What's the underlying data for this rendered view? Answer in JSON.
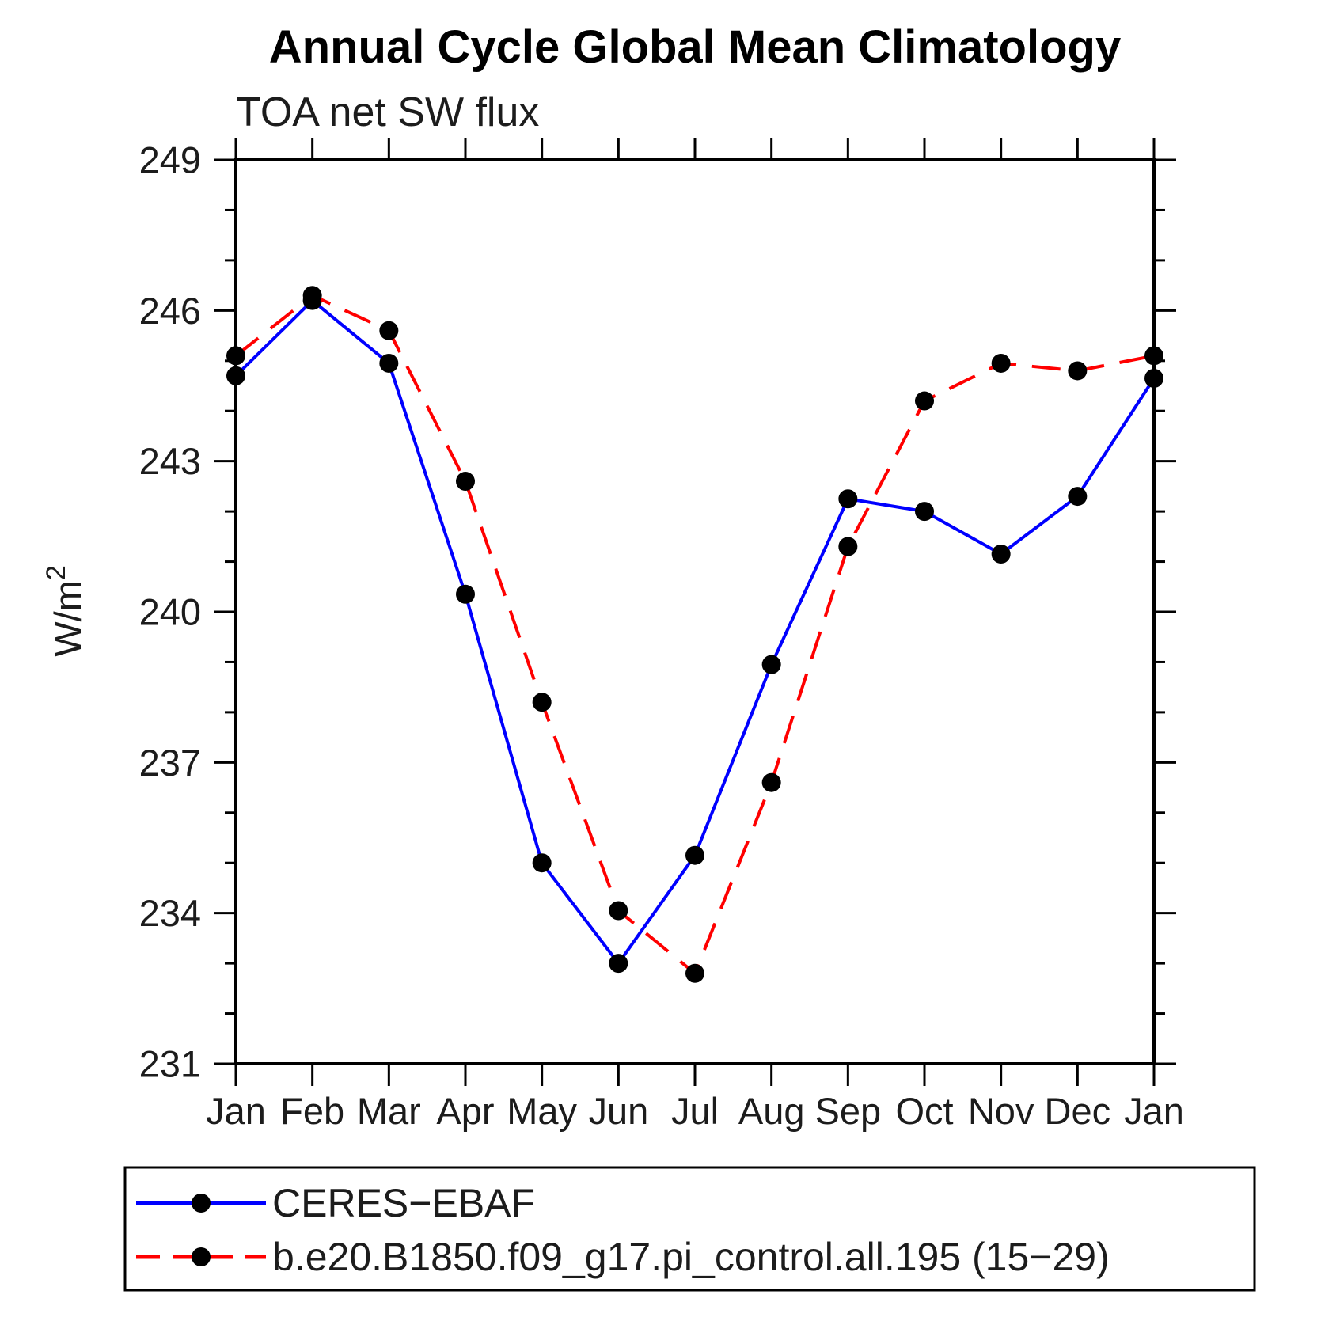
{
  "title": "Annual Cycle Global Mean Climatology",
  "subtitle": "TOA net SW flux",
  "ylabel": {
    "base": "W/m",
    "exponent": "2"
  },
  "chart_data": {
    "type": "line",
    "title": "Annual Cycle Global Mean Climatology",
    "subtitle": "TOA net SW flux",
    "xlabel": "",
    "ylabel": "W/m²",
    "x_categories": [
      "Jan",
      "Feb",
      "Mar",
      "Apr",
      "May",
      "Jun",
      "Jul",
      "Aug",
      "Sep",
      "Oct",
      "Nov",
      "Dec",
      "Jan"
    ],
    "ylim": [
      231,
      249
    ],
    "y_major_ticks": [
      249,
      246,
      243,
      240,
      237,
      234,
      231
    ],
    "y_minor_step": 1,
    "grid": false,
    "legend_position": "bottom",
    "series": [
      {
        "name": "CERES−EBAF",
        "color": "#0000ff",
        "line_style": "solid",
        "marker": "filled-circle",
        "marker_color": "#000000",
        "values": [
          244.7,
          246.2,
          244.95,
          240.35,
          235.0,
          233.0,
          235.15,
          238.95,
          242.25,
          242.0,
          241.15,
          242.3,
          244.65
        ]
      },
      {
        "name": "b.e20.B1850.f09_g17.pi_control.all.195 (15−29)",
        "color": "#ff0000",
        "line_style": "dashed",
        "marker": "filled-circle",
        "marker_color": "#000000",
        "values": [
          245.1,
          246.3,
          245.6,
          242.6,
          238.2,
          234.05,
          232.8,
          236.6,
          241.3,
          244.2,
          244.95,
          244.8,
          245.1
        ]
      }
    ]
  }
}
